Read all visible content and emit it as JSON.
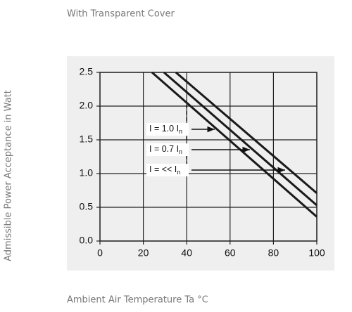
{
  "chart_data": {
    "type": "line",
    "title": "With Transparent Cover",
    "xlabel": "Ambient Air Temperature Ta °C",
    "ylabel": "Admissible Power Acceptance in Watt",
    "xlim": [
      0,
      100
    ],
    "xticks": [
      0,
      20,
      40,
      60,
      80,
      100
    ],
    "ylim": [
      0,
      2.5
    ],
    "yticks": [
      {
        "value": 0,
        "label": "0.0"
      },
      0.5,
      {
        "value": 1,
        "label": "1.0"
      },
      1.5,
      {
        "value": 2,
        "label": "2.0"
      },
      2.5
    ],
    "grid": true,
    "series": [
      {
        "color": "#1a1a1a",
        "x": [
          24,
          100
        ],
        "values": [
          2.5,
          0.36
        ]
      },
      {
        "color": "#1a1a1a",
        "x": [
          29.5,
          100
        ],
        "values": [
          2.5,
          0.53
        ]
      },
      {
        "color": "#1a1a1a",
        "x": [
          35,
          100
        ],
        "values": [
          2.5,
          0.71
        ]
      }
    ],
    "annotations": [
      {
        "text": "I = 1.0 I",
        "sub": "n"
      },
      {
        "text": "I = 0.7 I",
        "sub": "n"
      },
      {
        "text": "I = << I",
        "sub": "n"
      }
    ]
  }
}
